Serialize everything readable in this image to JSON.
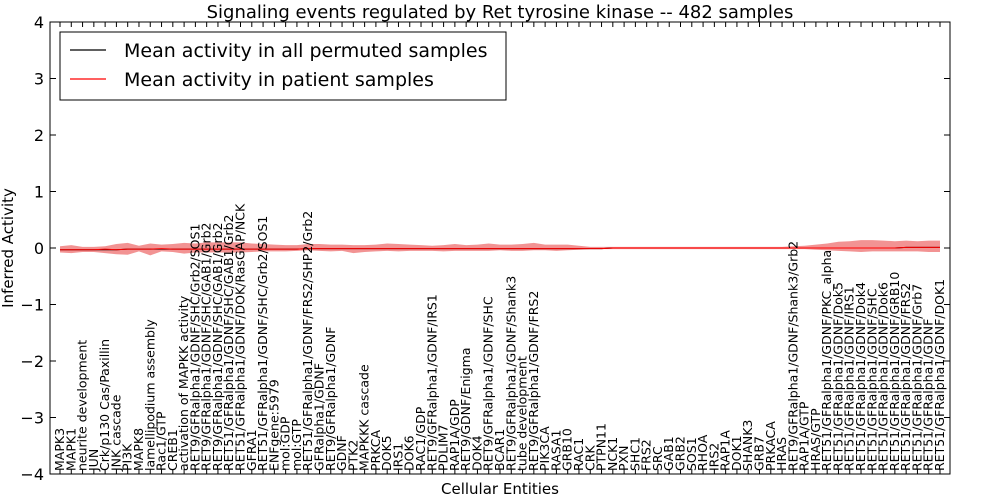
{
  "chart_data": {
    "type": "line",
    "title": "Signaling events regulated by Ret tyrosine kinase -- 482 samples",
    "xlabel": "Cellular Entities",
    "ylabel": "Inferred Activity",
    "ylim": [
      -4,
      4
    ],
    "yticks": [
      "−4",
      "−3",
      "−2",
      "−1",
      "0",
      "1",
      "2",
      "3",
      "4"
    ],
    "grid": false,
    "legend_position": "top-left",
    "categories": [
      "MAPK3",
      "MAPK1",
      "neurite development",
      "JUN",
      "Crk/p130 Cas/Paxillin",
      "JNK cascade",
      "PI3K",
      "MAPK8",
      "lamellipodium assembly",
      "Rac1/GTP",
      "CREB1",
      "activation of MAPKK activity",
      "RET9/GFRalpha1/GDNF/SHC/Grb2/SOS1",
      "RET9/GFRalpha1/GDNF/SHC/GAB1/Grb2",
      "RET9/GFRalpha1/GDNF/SHC/GAB1/Grb2",
      "RET51/GFRalpha1/GDNF/SHC/GAB1/Grb2",
      "RET51/GFRalpha1/GDNF/DOK/RasGAP/NCK",
      "GFRA1",
      "RET51/GFRalpha1/GDNF/SHC/Grb2/SOS1",
      "ENFgene:5979",
      "mol:GDP",
      "mol:GTP",
      "RET51/GFRalpha1/GDNF/FRS2/SHP2/Grb2",
      "GFRalpha1/GDNF",
      "RET9/GFRalpha1/GDNF",
      "GDNF",
      "PTK2",
      "MAPKKK cascade",
      "PRKCA",
      "DOK5",
      "IRS1",
      "DOK6",
      "RAC1/GDP",
      "RET9/GFRalpha1/GDNF/IRS1",
      "PDLIM7",
      "RAP1A/GDP",
      "RET9/GDNF/Enigma",
      "DOK4",
      "RET9/GFRalpha1/GDNF/SHC",
      "BCAR1",
      "RET9/GFRalpha1/GDNF/Shank3",
      "tube development",
      "RET9/GFRalpha1/GDNF/FRS2",
      "PIK3CA",
      "RASA1",
      "GRB10",
      "RAC1",
      "CRK",
      "PTPN11",
      "NCK1",
      "PXN",
      "SHC1",
      "FRS2",
      "SRC",
      "GAB1",
      "GRB2",
      "SOS1",
      "RHOA",
      "IRS2",
      "RAP1A",
      "DOK1",
      "SHANK3",
      "GRB7",
      "PRKACA",
      "HRAS",
      "RET9/GFRalpha1/GDNF/Shank3/Grb2",
      "RAP1A/GTP",
      "HRAS/GTP",
      "RET51/GFRalpha1/GDNF/PKC_alpha",
      "RET51/GFRalpha1/GDNF/Dok5",
      "RET51/GFRalpha1/GDNF/IRS1",
      "RET51/GFRalpha1/GDNF/Dok4",
      "RET51/GFRalpha1/GDNF/SHC",
      "RET51/GFRalpha1/GDNF/Dok6",
      "RET51/GFRalpha1/GDNF/GRB10",
      "RET51/GFRalpha1/GDNF/FRS2",
      "RET51/GFRalpha1/GDNF/Grb7",
      "RET51/GFRalpha1/GDNF",
      "RET51/GFRalpha1/GDNF/DOK1"
    ],
    "series": [
      {
        "name": "Mean activity in all permuted samples",
        "color": "#000000",
        "values": [
          -0.03,
          -0.03,
          -0.03,
          -0.03,
          -0.03,
          -0.03,
          -0.02,
          -0.02,
          -0.02,
          -0.02,
          -0.02,
          -0.02,
          -0.02,
          -0.02,
          -0.02,
          -0.02,
          -0.02,
          -0.02,
          -0.02,
          -0.02,
          -0.02,
          -0.02,
          -0.01,
          -0.01,
          -0.01,
          -0.01,
          -0.01,
          -0.01,
          -0.01,
          -0.01,
          -0.01,
          -0.01,
          -0.01,
          -0.01,
          -0.01,
          -0.01,
          -0.01,
          -0.01,
          -0.01,
          -0.01,
          -0.01,
          -0.01,
          -0.01,
          -0.01,
          -0.01,
          -0.01,
          -0.01,
          -0.01,
          -0.01,
          0.0,
          0.0,
          0.0,
          0.0,
          0.0,
          0.0,
          0.0,
          0.0,
          0.0,
          0.0,
          0.0,
          0.0,
          0.0,
          0.0,
          0.0,
          0.0,
          0.0,
          0.0,
          0.0,
          0.0,
          0.0,
          0.0,
          0.0,
          0.0,
          0.0,
          0.0,
          0.01,
          0.01,
          0.01,
          0.01
        ]
      },
      {
        "name": "Mean activity in patient samples",
        "color": "#ff0000",
        "band_color": "#f08080",
        "values": [
          -0.03,
          -0.03,
          -0.03,
          -0.03,
          -0.02,
          -0.03,
          -0.02,
          -0.02,
          -0.02,
          -0.01,
          -0.02,
          -0.02,
          -0.02,
          -0.02,
          -0.02,
          -0.02,
          -0.02,
          -0.02,
          -0.02,
          -0.02,
          -0.02,
          -0.02,
          -0.01,
          -0.01,
          -0.01,
          -0.01,
          -0.01,
          -0.01,
          -0.01,
          -0.01,
          -0.01,
          -0.01,
          -0.01,
          -0.01,
          -0.01,
          -0.01,
          -0.01,
          -0.01,
          -0.01,
          -0.01,
          -0.01,
          -0.01,
          -0.01,
          -0.01,
          -0.01,
          -0.01,
          -0.01,
          -0.01,
          -0.01,
          0.0,
          0.0,
          0.0,
          0.0,
          0.0,
          0.0,
          0.0,
          0.0,
          0.0,
          0.0,
          0.0,
          0.0,
          0.0,
          0.0,
          0.0,
          0.0,
          0.0,
          0.0,
          0.0,
          0.0,
          0.0,
          0.0,
          0.0,
          0.0,
          0.0,
          0.0,
          0.01,
          0.01,
          0.01,
          0.01
        ],
        "band_upper": [
          0.03,
          0.05,
          0.02,
          0.02,
          0.03,
          0.07,
          0.09,
          0.04,
          0.08,
          0.06,
          0.07,
          0.09,
          0.08,
          0.1,
          0.1,
          0.1,
          0.1,
          0.08,
          0.07,
          0.06,
          0.05,
          0.05,
          0.07,
          0.07,
          0.06,
          0.06,
          0.05,
          0.05,
          0.06,
          0.08,
          0.07,
          0.06,
          0.05,
          0.04,
          0.05,
          0.07,
          0.05,
          0.06,
          0.08,
          0.06,
          0.06,
          0.07,
          0.09,
          0.06,
          0.06,
          0.06,
          0.04,
          0.02,
          0.02,
          0.02,
          0.02,
          0.02,
          0.02,
          0.02,
          0.02,
          0.02,
          0.02,
          0.02,
          0.02,
          0.02,
          0.02,
          0.02,
          0.02,
          0.02,
          0.02,
          0.03,
          0.04,
          0.06,
          0.08,
          0.11,
          0.12,
          0.14,
          0.14,
          0.13,
          0.12,
          0.13,
          0.12,
          0.13,
          0.13
        ],
        "band_lower": [
          -0.08,
          -0.09,
          -0.07,
          -0.07,
          -0.09,
          -0.11,
          -0.12,
          -0.06,
          -0.13,
          -0.06,
          -0.07,
          -0.1,
          -0.08,
          -0.08,
          -0.08,
          -0.08,
          -0.08,
          -0.07,
          -0.06,
          -0.06,
          -0.06,
          -0.05,
          -0.04,
          -0.05,
          -0.06,
          -0.05,
          -0.09,
          -0.07,
          -0.06,
          -0.05,
          -0.06,
          -0.05,
          -0.05,
          -0.05,
          -0.06,
          -0.05,
          -0.05,
          -0.05,
          -0.05,
          -0.04,
          -0.05,
          -0.05,
          -0.04,
          -0.04,
          -0.05,
          -0.04,
          -0.03,
          -0.02,
          -0.02,
          -0.02,
          -0.02,
          -0.02,
          -0.02,
          -0.02,
          -0.02,
          -0.02,
          -0.02,
          -0.02,
          -0.02,
          -0.02,
          -0.02,
          -0.02,
          -0.02,
          -0.02,
          -0.02,
          -0.02,
          -0.02,
          -0.03,
          -0.04,
          -0.05,
          -0.06,
          -0.07,
          -0.06,
          -0.06,
          -0.06,
          -0.06,
          -0.06,
          -0.07,
          -0.07
        ]
      }
    ]
  }
}
